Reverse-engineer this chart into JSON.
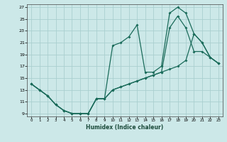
{
  "xlabel": "Humidex (Indice chaleur)",
  "bg_color": "#cce8e8",
  "grid_color": "#aacfcf",
  "line_color": "#1a6b5a",
  "xlim": [
    -0.5,
    23.5
  ],
  "ylim": [
    8.5,
    27.5
  ],
  "xticks": [
    0,
    1,
    2,
    3,
    4,
    5,
    6,
    7,
    8,
    9,
    10,
    11,
    12,
    13,
    14,
    15,
    16,
    17,
    18,
    19,
    20,
    21,
    22,
    23
  ],
  "yticks": [
    9,
    11,
    13,
    15,
    17,
    19,
    21,
    23,
    25,
    27
  ],
  "line1_x": [
    0,
    1,
    2,
    3,
    4,
    5,
    6,
    7,
    8,
    9,
    10,
    11,
    12,
    13,
    14,
    15,
    16,
    17,
    18,
    19,
    20,
    21,
    22,
    23
  ],
  "line1_y": [
    14,
    13,
    12,
    10.5,
    9.5,
    9,
    9,
    9,
    11.5,
    11.5,
    20.5,
    21,
    22,
    24,
    16,
    16,
    17,
    26,
    27,
    26,
    22.5,
    21,
    18.5,
    17.5
  ],
  "line2_x": [
    0,
    1,
    2,
    3,
    4,
    5,
    6,
    7,
    8,
    9,
    10,
    11,
    12,
    13,
    14,
    15,
    16,
    17,
    18,
    19,
    20,
    21,
    22,
    23
  ],
  "line2_y": [
    14,
    13,
    12,
    10.5,
    9.5,
    9,
    9,
    9,
    11.5,
    11.5,
    13,
    13.5,
    14,
    14.5,
    15,
    15.5,
    16,
    16.5,
    17,
    18,
    22.5,
    21,
    18.5,
    17.5
  ],
  "line3_x": [
    0,
    1,
    2,
    3,
    4,
    5,
    6,
    7,
    8,
    9,
    10,
    11,
    12,
    13,
    14,
    15,
    16,
    17,
    18,
    19,
    20,
    21,
    22,
    23
  ],
  "line3_y": [
    14,
    13,
    12,
    10.5,
    9.5,
    9,
    9,
    9,
    11.5,
    11.5,
    13,
    13.5,
    14,
    14.5,
    15,
    15.5,
    16,
    23.5,
    25.5,
    23.5,
    19.5,
    19.5,
    18.5,
    17.5
  ]
}
